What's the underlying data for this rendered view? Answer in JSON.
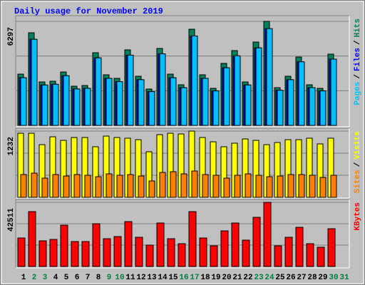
{
  "title": "Daily usage for November 2019",
  "legend_separator": "/",
  "chart_data": [
    {
      "type": "bar",
      "series": [
        {
          "name": "Hits",
          "color": "#00805c",
          "values": [
            3105,
            5607,
            2631,
            2674,
            3235,
            2372,
            2415,
            4399,
            3062,
            2847,
            4572,
            2976,
            2200,
            4658,
            3105,
            2458,
            5822,
            3062,
            2243,
            3752,
            4529,
            2631,
            5046,
            6297,
            2286,
            2976,
            4140,
            2458,
            2243,
            4313,
            null
          ]
        },
        {
          "name": "Files",
          "color": "#0000ff",
          "values": [
            2888,
            5214,
            2447,
            2487,
            3009,
            2206,
            2246,
            4091,
            2848,
            2648,
            4252,
            2768,
            2046,
            4332,
            2888,
            2286,
            5414,
            2848,
            2086,
            3489,
            4212,
            2447,
            4693,
            5856,
            2126,
            2768,
            3850,
            2286,
            2086,
            4011,
            null
          ]
        },
        {
          "name": "Pages",
          "color": "#00c0ff",
          "values": [
            2888,
            5214,
            2447,
            2487,
            3009,
            2206,
            2246,
            4091,
            2848,
            2648,
            4252,
            2768,
            2046,
            4332,
            2888,
            2286,
            5414,
            2848,
            2086,
            3489,
            4212,
            2447,
            4693,
            5856,
            2126,
            2768,
            3850,
            2286,
            2086,
            4011,
            null
          ]
        }
      ],
      "ylim": [
        0,
        6297
      ],
      "yticks": [
        6297
      ]
    },
    {
      "type": "bar",
      "series": [
        {
          "name": "Visits",
          "color": "#ffff00",
          "values": [
            1192,
            1192,
            980,
            1126,
            1060,
            1113,
            1113,
            941,
            1139,
            1113,
            1100,
            1073,
            848,
            1166,
            1192,
            1179,
            1232,
            1113,
            1033,
            941,
            1007,
            1086,
            1060,
            980,
            1020,
            1073,
            1073,
            1100,
            994,
            1100,
            null
          ]
        },
        {
          "name": "Sites",
          "color": "#ff8000",
          "values": [
            424,
            450,
            358,
            424,
            397,
            424,
            411,
            384,
            437,
            411,
            424,
            397,
            305,
            464,
            477,
            437,
            490,
            424,
            411,
            358,
            411,
            437,
            411,
            384,
            397,
            424,
            424,
            411,
            371,
            411,
            null
          ]
        }
      ],
      "ylim": [
        0,
        1232
      ],
      "yticks": [
        1232
      ]
    },
    {
      "type": "bar",
      "categories": [
        "1",
        "2",
        "3",
        "4",
        "5",
        "6",
        "7",
        "8",
        "9",
        "10",
        "11",
        "12",
        "13",
        "14",
        "15",
        "16",
        "17",
        "18",
        "19",
        "20",
        "21",
        "22",
        "23",
        "24",
        "25",
        "26",
        "27",
        "28",
        "29",
        "30",
        "31"
      ],
      "category_colors": [
        "#000000",
        "#008040",
        "#008040",
        "#000000",
        "#000000",
        "#000000",
        "#000000",
        "#000000",
        "#008040",
        "#008040",
        "#000000",
        "#000000",
        "#000000",
        "#000000",
        "#000000",
        "#008040",
        "#008040",
        "#000000",
        "#000000",
        "#000000",
        "#000000",
        "#000000",
        "#008040",
        "#008040",
        "#000000",
        "#000000",
        "#000000",
        "#000000",
        "#000000",
        "#008040",
        "#008040"
      ],
      "series": [
        {
          "name": "KBytes",
          "color": "#ff0000",
          "values": [
            18894,
            36370,
            17004,
            17949,
            27396,
            16532,
            16532,
            28341,
            18421,
            19839,
            29758,
            19366,
            14170,
            28813,
            18421,
            15115,
            36370,
            18894,
            13698,
            23617,
            28813,
            17477,
            32592,
            42511,
            13698,
            19366,
            25979,
            15115,
            12753,
            25034,
            null
          ]
        }
      ],
      "ylim": [
        0,
        42511
      ],
      "yticks": [
        42511
      ]
    }
  ]
}
